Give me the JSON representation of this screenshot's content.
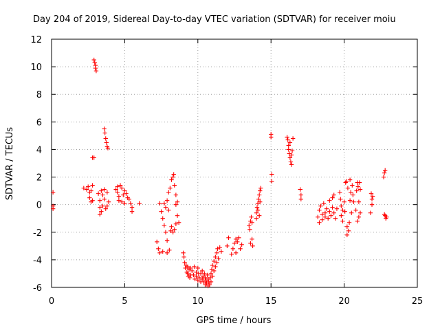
{
  "chart_data": {
    "type": "scatter",
    "title": "Day 204 of 2019, Sidereal Day-to-day VTEC variation (SDTVAR) for receiver moiu",
    "xlabel": "GPS time / hours",
    "ylabel": "SDTVAR / TECUs",
    "xlim": [
      0,
      25
    ],
    "ylim": [
      -6,
      12
    ],
    "xticks": [
      "0",
      "5",
      "10",
      "15",
      "20",
      "25"
    ],
    "yticks": [
      "-6",
      "-4",
      "-2",
      "0",
      "2",
      "4",
      "6",
      "8",
      "10",
      "12"
    ],
    "grid": true,
    "marker": "+",
    "color": "#ff0000",
    "series": [
      {
        "name": "SDTVAR",
        "points": [
          [
            0.1,
            0.9
          ],
          [
            0.1,
            -0.1
          ],
          [
            0.1,
            -0.3
          ],
          [
            2.2,
            1.2
          ],
          [
            2.4,
            1.1
          ],
          [
            2.5,
            1.3
          ],
          [
            2.6,
            0.9
          ],
          [
            2.6,
            0.5
          ],
          [
            2.7,
            0.2
          ],
          [
            2.7,
            1.0
          ],
          [
            2.8,
            1.4
          ],
          [
            2.8,
            0.3
          ],
          [
            2.8,
            3.4
          ],
          [
            2.9,
            3.4
          ],
          [
            2.9,
            10.5
          ],
          [
            2.95,
            10.3
          ],
          [
            3.0,
            10.1
          ],
          [
            3.0,
            9.9
          ],
          [
            3.05,
            9.7
          ],
          [
            3.2,
            0.8
          ],
          [
            3.3,
            0.3
          ],
          [
            3.3,
            -0.2
          ],
          [
            3.4,
            -0.5
          ],
          [
            3.4,
            1.0
          ],
          [
            3.5,
            0.7
          ],
          [
            3.5,
            -0.1
          ],
          [
            3.6,
            0.4
          ],
          [
            3.6,
            1.1
          ],
          [
            3.7,
            -0.3
          ],
          [
            3.8,
            0.9
          ],
          [
            3.8,
            -0.1
          ],
          [
            3.9,
            0.2
          ],
          [
            3.3,
            -0.7
          ],
          [
            3.6,
            5.5
          ],
          [
            3.65,
            5.2
          ],
          [
            3.7,
            4.8
          ],
          [
            3.75,
            4.5
          ],
          [
            3.8,
            4.2
          ],
          [
            3.85,
            4.1
          ],
          [
            4.4,
            1.1
          ],
          [
            4.5,
            1.3
          ],
          [
            4.5,
            0.9
          ],
          [
            4.6,
            0.6
          ],
          [
            4.6,
            0.3
          ],
          [
            4.7,
            1.4
          ],
          [
            4.8,
            1.2
          ],
          [
            4.8,
            0.2
          ],
          [
            4.9,
            0.7
          ],
          [
            5.0,
            1.0
          ],
          [
            5.0,
            0.1
          ],
          [
            5.1,
            0.8
          ],
          [
            5.2,
            0.5
          ],
          [
            5.3,
            0.4
          ],
          [
            5.4,
            0.1
          ],
          [
            5.5,
            -0.2
          ],
          [
            5.5,
            -0.5
          ],
          [
            6.0,
            0.1
          ],
          [
            7.2,
            -2.7
          ],
          [
            7.3,
            -3.2
          ],
          [
            7.4,
            -3.5
          ],
          [
            7.4,
            0.1
          ],
          [
            7.5,
            -0.5
          ],
          [
            7.6,
            -1.0
          ],
          [
            7.6,
            -3.4
          ],
          [
            7.7,
            -1.5
          ],
          [
            7.8,
            -2.0
          ],
          [
            7.9,
            -3.5
          ],
          [
            7.9,
            -2.6
          ],
          [
            7.8,
            -0.2
          ],
          [
            7.9,
            0.3
          ],
          [
            8.0,
            -0.4
          ],
          [
            7.7,
            0.1
          ],
          [
            8.0,
            0.9
          ],
          [
            8.05,
            -3.3
          ],
          [
            8.1,
            1.2
          ],
          [
            8.15,
            -1.9
          ],
          [
            8.2,
            1.8
          ],
          [
            8.2,
            -1.6
          ],
          [
            8.3,
            2.0
          ],
          [
            8.3,
            -2.0
          ],
          [
            8.35,
            2.2
          ],
          [
            8.4,
            1.4
          ],
          [
            8.4,
            -1.8
          ],
          [
            8.5,
            0.7
          ],
          [
            8.5,
            0.0
          ],
          [
            8.5,
            -1.4
          ],
          [
            8.6,
            0.2
          ],
          [
            8.6,
            -0.8
          ],
          [
            8.7,
            -1.3
          ],
          [
            9.0,
            -3.5
          ],
          [
            9.05,
            -3.8
          ],
          [
            9.1,
            -4.2
          ],
          [
            9.15,
            -4.6
          ],
          [
            9.2,
            -4.4
          ],
          [
            9.25,
            -4.9
          ],
          [
            9.3,
            -5.0
          ],
          [
            9.3,
            -4.5
          ],
          [
            9.35,
            -5.2
          ],
          [
            9.4,
            -4.7
          ],
          [
            9.45,
            -5.3
          ],
          [
            9.5,
            -5.1
          ],
          [
            9.5,
            -4.6
          ],
          [
            9.6,
            -4.8
          ],
          [
            9.7,
            -5.1
          ],
          [
            9.75,
            -4.5
          ],
          [
            9.8,
            -5.4
          ],
          [
            9.9,
            -4.9
          ],
          [
            9.9,
            -5.2
          ],
          [
            10.0,
            -5.5
          ],
          [
            10.0,
            -4.6
          ],
          [
            10.05,
            -5.0
          ],
          [
            10.1,
            -5.3
          ],
          [
            10.2,
            -5.6
          ],
          [
            10.2,
            -5.0
          ],
          [
            10.3,
            -4.8
          ],
          [
            10.3,
            -5.4
          ],
          [
            10.35,
            -5.2
          ],
          [
            10.4,
            -5.6
          ],
          [
            10.45,
            -5.0
          ],
          [
            10.5,
            -5.8
          ],
          [
            10.5,
            -5.3
          ],
          [
            10.55,
            -5.5
          ],
          [
            10.6,
            -5.7
          ],
          [
            10.65,
            -5.1
          ],
          [
            10.7,
            -5.9
          ],
          [
            10.7,
            -5.4
          ],
          [
            10.75,
            -5.6
          ],
          [
            10.8,
            -5.8
          ],
          [
            10.85,
            -5.3
          ],
          [
            10.9,
            -5.0
          ],
          [
            10.9,
            -5.6
          ],
          [
            10.95,
            -4.7
          ],
          [
            11.0,
            -4.4
          ],
          [
            11.0,
            -5.2
          ],
          [
            11.1,
            -4.1
          ],
          [
            11.1,
            -4.8
          ],
          [
            11.2,
            -3.8
          ],
          [
            11.2,
            -4.5
          ],
          [
            11.3,
            -3.5
          ],
          [
            11.3,
            -4.2
          ],
          [
            11.35,
            -3.2
          ],
          [
            11.4,
            -3.9
          ],
          [
            11.5,
            -3.1
          ],
          [
            11.6,
            -3.4
          ],
          [
            12.0,
            -3.0
          ],
          [
            12.1,
            -2.4
          ],
          [
            12.3,
            -3.6
          ],
          [
            12.4,
            -3.2
          ],
          [
            12.5,
            -2.8
          ],
          [
            12.6,
            -2.5
          ],
          [
            12.6,
            -3.5
          ],
          [
            12.7,
            -2.7
          ],
          [
            12.8,
            -2.4
          ],
          [
            12.9,
            -3.2
          ],
          [
            13.0,
            -2.9
          ],
          [
            13.5,
            -1.5
          ],
          [
            13.55,
            -1.8
          ],
          [
            13.6,
            -1.2
          ],
          [
            13.6,
            -2.8
          ],
          [
            13.65,
            -0.9
          ],
          [
            13.7,
            -1.3
          ],
          [
            13.7,
            -2.5
          ],
          [
            13.75,
            -3.0
          ],
          [
            14.0,
            -1.0
          ],
          [
            14.0,
            -0.6
          ],
          [
            14.05,
            -0.2
          ],
          [
            14.1,
            0.1
          ],
          [
            14.1,
            -0.4
          ],
          [
            14.15,
            0.4
          ],
          [
            14.2,
            0.7
          ],
          [
            14.2,
            -0.8
          ],
          [
            14.25,
            1.0
          ],
          [
            14.3,
            1.2
          ],
          [
            14.25,
            0.2
          ],
          [
            15.0,
            5.1
          ],
          [
            15.0,
            4.9
          ],
          [
            15.05,
            2.2
          ],
          [
            15.05,
            1.7
          ],
          [
            16.1,
            4.9
          ],
          [
            16.15,
            4.7
          ],
          [
            16.2,
            4.3
          ],
          [
            16.2,
            4.0
          ],
          [
            16.25,
            3.7
          ],
          [
            16.3,
            3.4
          ],
          [
            16.3,
            4.5
          ],
          [
            16.35,
            3.1
          ],
          [
            16.4,
            2.9
          ],
          [
            16.4,
            3.6
          ],
          [
            16.45,
            3.9
          ],
          [
            16.5,
            4.8
          ],
          [
            17.0,
            1.1
          ],
          [
            17.05,
            0.7
          ],
          [
            17.05,
            0.4
          ],
          [
            18.2,
            -0.9
          ],
          [
            18.3,
            -0.4
          ],
          [
            18.3,
            -1.3
          ],
          [
            18.4,
            -0.1
          ],
          [
            18.5,
            -0.7
          ],
          [
            18.5,
            -1.1
          ],
          [
            18.6,
            0.1
          ],
          [
            18.7,
            -0.6
          ],
          [
            18.7,
            -0.9
          ],
          [
            18.8,
            -0.3
          ],
          [
            18.9,
            -1.0
          ],
          [
            19.0,
            -0.5
          ],
          [
            19.0,
            0.3
          ],
          [
            19.1,
            -0.8
          ],
          [
            19.2,
            -0.2
          ],
          [
            19.2,
            0.5
          ],
          [
            19.3,
            -0.6
          ],
          [
            19.3,
            0.7
          ],
          [
            19.4,
            -1.0
          ],
          [
            19.5,
            -0.3
          ],
          [
            19.7,
            0.9
          ],
          [
            19.75,
            0.4
          ],
          [
            19.8,
            -0.1
          ],
          [
            19.8,
            -0.8
          ],
          [
            19.9,
            -0.4
          ],
          [
            19.9,
            -1.2
          ],
          [
            20.0,
            0.2
          ],
          [
            20.05,
            -0.5
          ],
          [
            20.1,
            1.6
          ],
          [
            20.15,
            1.7
          ],
          [
            20.2,
            -1.6
          ],
          [
            20.2,
            -2.2
          ],
          [
            20.25,
            1.2
          ],
          [
            20.3,
            -1.9
          ],
          [
            20.35,
            -1.3
          ],
          [
            20.4,
            0.3
          ],
          [
            20.4,
            1.8
          ],
          [
            20.45,
            0.9
          ],
          [
            20.5,
            -0.6
          ],
          [
            20.55,
            1.4
          ],
          [
            20.6,
            0.7
          ],
          [
            20.65,
            0.2
          ],
          [
            20.8,
            -0.4
          ],
          [
            20.85,
            1.0
          ],
          [
            20.9,
            1.6
          ],
          [
            20.9,
            -1.2
          ],
          [
            20.95,
            1.3
          ],
          [
            21.0,
            0.2
          ],
          [
            21.0,
            -0.9
          ],
          [
            21.05,
            1.6
          ],
          [
            21.1,
            1.1
          ],
          [
            21.1,
            -0.6
          ],
          [
            21.8,
            -0.6
          ],
          [
            21.85,
            0.8
          ],
          [
            21.9,
            0.4
          ],
          [
            21.9,
            0.0
          ],
          [
            21.95,
            0.6
          ],
          [
            22.7,
            2.0
          ],
          [
            22.75,
            2.3
          ],
          [
            22.8,
            2.5
          ],
          [
            22.8,
            -0.8
          ],
          [
            22.85,
            -1.0
          ],
          [
            22.9,
            -0.9
          ],
          [
            22.75,
            -0.7
          ]
        ]
      }
    ]
  }
}
